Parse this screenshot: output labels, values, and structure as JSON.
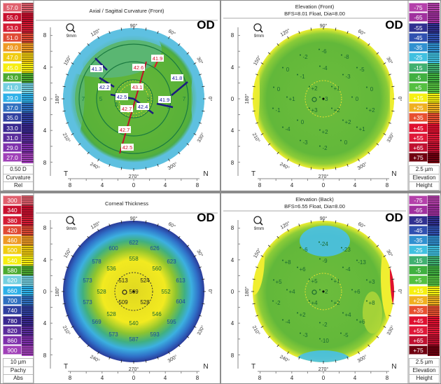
{
  "panels": [
    {
      "id": "axial",
      "title": "Axial / Sagittal Curvature (Front)",
      "subtitle": "",
      "eye": "OD",
      "zoom_label": "9mm",
      "side_left": "T",
      "side_right": "N",
      "axis_ticks": [
        "8",
        "4",
        "0",
        "4",
        "8"
      ],
      "angle_labels": [
        "90°",
        "60°",
        "30°",
        "0°",
        "330°",
        "300°",
        "270°",
        "240°",
        "210°",
        "180°",
        "150°",
        "120°"
      ],
      "scale_side": "left",
      "scale": {
        "labels": [
          "57.0",
          "55.0",
          "53.0",
          "51.0",
          "49.0",
          "47.0",
          "45.0",
          "43.0",
          "41.0",
          "39.0",
          "37.0",
          "35.0",
          "33.0",
          "31.0",
          "29.0",
          "27.0"
        ],
        "colors": [
          "#e0606e",
          "#c8102e",
          "#d41c34",
          "#e04a34",
          "#ee9a24",
          "#f0cc10",
          "#f6ee10",
          "#4caa30",
          "#74cfe0",
          "#2eb0e8",
          "#3070c0",
          "#3040a0",
          "#3a2890",
          "#5a2c9c",
          "#7e30ac",
          "#a040b8"
        ],
        "footer": [
          "0.50 D",
          "Curvature",
          "Rel"
        ]
      },
      "map_colors": {
        "center": "#86c440",
        "mid": "#58b038",
        "edge": "#5ec0e0"
      },
      "rings": [
        "3",
        "5",
        "7"
      ],
      "steep_values": [
        "41.9",
        "42.6",
        "43.1",
        "42.7",
        "42.7",
        "42.5"
      ],
      "flat_values": [
        "41.3",
        "41.8",
        "42.2",
        "42.5",
        "42.4",
        "41.9"
      ]
    },
    {
      "id": "elev-front",
      "title": "Elevation (Front)",
      "subtitle": "BFS=8.01 Float, Dia=8.00",
      "eye": "OD",
      "zoom_label": "9mm",
      "side_left": "T",
      "side_right": "N",
      "axis_ticks": [
        "8",
        "4",
        "0",
        "4",
        "8"
      ],
      "angle_labels": [
        "90°",
        "60°",
        "30°",
        "0°",
        "330°",
        "300°",
        "270°",
        "240°",
        "210°",
        "180°",
        "150°",
        "120°"
      ],
      "scale_side": "right",
      "scale": {
        "labels": [
          "-75",
          "-65",
          "-55",
          "-45",
          "-35",
          "-25",
          "-15",
          "-5",
          "+5",
          "+15",
          "+25",
          "+35",
          "+45",
          "+55",
          "+65",
          "+75"
        ],
        "colors": [
          "#b440aa",
          "#a0309e",
          "#303090",
          "#3050b0",
          "#3090d0",
          "#40c0e0",
          "#40b070",
          "#40b040",
          "#54c040",
          "#f6f010",
          "#f0b020",
          "#e85030",
          "#e01030",
          "#e01838",
          "#c01030",
          "#700010"
        ],
        "footer": [
          "2.5 µm",
          "Elevation",
          "Height"
        ]
      },
      "map_colors": {
        "center": "#6cbc3c",
        "mid": "#62b83a",
        "edge": "#f0ee30"
      },
      "values": [
        "-6",
        "-2",
        "-8",
        "0",
        "-4",
        "-5",
        "-1",
        "-3",
        "0",
        "+2",
        "+1",
        "0",
        "+1",
        "+3",
        "0",
        "-1",
        "+3",
        "+2",
        "+2",
        "0",
        "+2",
        "-4",
        "+2",
        "+1",
        "-3",
        "0",
        "-2"
      ]
    },
    {
      "id": "pachy",
      "title": "Corneal Thickness",
      "subtitle": "",
      "eye": "OD",
      "zoom_label": "9mm",
      "side_left": "T",
      "side_right": "N",
      "axis_ticks": [
        "8",
        "4",
        "0",
        "4",
        "8"
      ],
      "angle_labels": [
        "90°",
        "60°",
        "30°",
        "0°",
        "330°",
        "300°",
        "270°",
        "240°",
        "210°",
        "180°",
        "150°",
        "120°"
      ],
      "scale_side": "left",
      "scale": {
        "labels": [
          "300",
          "340",
          "380",
          "420",
          "460",
          "500",
          "540",
          "580",
          "620",
          "660",
          "700",
          "740",
          "780",
          "820",
          "860",
          "900"
        ],
        "colors": [
          "#e0606e",
          "#c8102e",
          "#d41c34",
          "#e04a34",
          "#ee9a24",
          "#f0cc10",
          "#f6ee10",
          "#4caa30",
          "#74cfe0",
          "#2eb0e8",
          "#3070c0",
          "#3040a0",
          "#3a2890",
          "#5a2c9c",
          "#7e30ac",
          "#a040b8"
        ],
        "footer": [
          "10 µm",
          "Pachy",
          "Abs"
        ]
      },
      "map_colors": {
        "center": "#e8e020",
        "mid": "#5cb830",
        "edge": "#2a4aa8"
      },
      "values": [
        "622",
        "600",
        "626",
        "578",
        "558",
        "623",
        "536",
        "560",
        "573",
        "513",
        "524",
        "613",
        "528",
        "569",
        "552",
        "573",
        "509",
        "528",
        "604",
        "528",
        "546",
        "569",
        "540",
        "595",
        "573",
        "593",
        "587"
      ]
    },
    {
      "id": "elev-back",
      "title": "Elevation (Back)",
      "subtitle": "BFS=6.55 Float, Dia=8.00",
      "eye": "OD",
      "zoom_label": "9mm",
      "side_left": "T",
      "side_right": "N",
      "axis_ticks": [
        "8",
        "4",
        "0",
        "4",
        "8"
      ],
      "angle_labels": [
        "90°",
        "60°",
        "30°",
        "0°",
        "330°",
        "300°",
        "270°",
        "240°",
        "210°",
        "180°",
        "150°",
        "120°"
      ],
      "scale_side": "right",
      "scale": {
        "labels": [
          "-75",
          "-65",
          "-55",
          "-45",
          "-35",
          "-25",
          "-15",
          "-5",
          "+5",
          "+15",
          "+25",
          "+35",
          "+45",
          "+55",
          "+65",
          "+75"
        ],
        "colors": [
          "#b440aa",
          "#a0309e",
          "#303090",
          "#3050b0",
          "#3090d0",
          "#40c0e0",
          "#40b070",
          "#40b040",
          "#54c040",
          "#f6f010",
          "#f0b020",
          "#e85030",
          "#e01030",
          "#e01838",
          "#c01030",
          "#700010"
        ],
        "footer": [
          "2.5 µm",
          "Elevation",
          "Height"
        ]
      },
      "map_colors": {
        "center": "#6cbc3c",
        "mid": "#62b83a",
        "edge": "#f0ee30",
        "hot": "#e01030",
        "cold": "#40c0e8"
      },
      "values": [
        "-24",
        "-6",
        "-23",
        "+8",
        "-9",
        "-13",
        "+6",
        "-4",
        "+5",
        "+5",
        "+1",
        "+3",
        "+4",
        "+2",
        "+6",
        "-2",
        "+4",
        "+2",
        "+8",
        "+2",
        "+4",
        "-4",
        "-2",
        "+6",
        "-3",
        "-5",
        "-10"
      ]
    }
  ]
}
